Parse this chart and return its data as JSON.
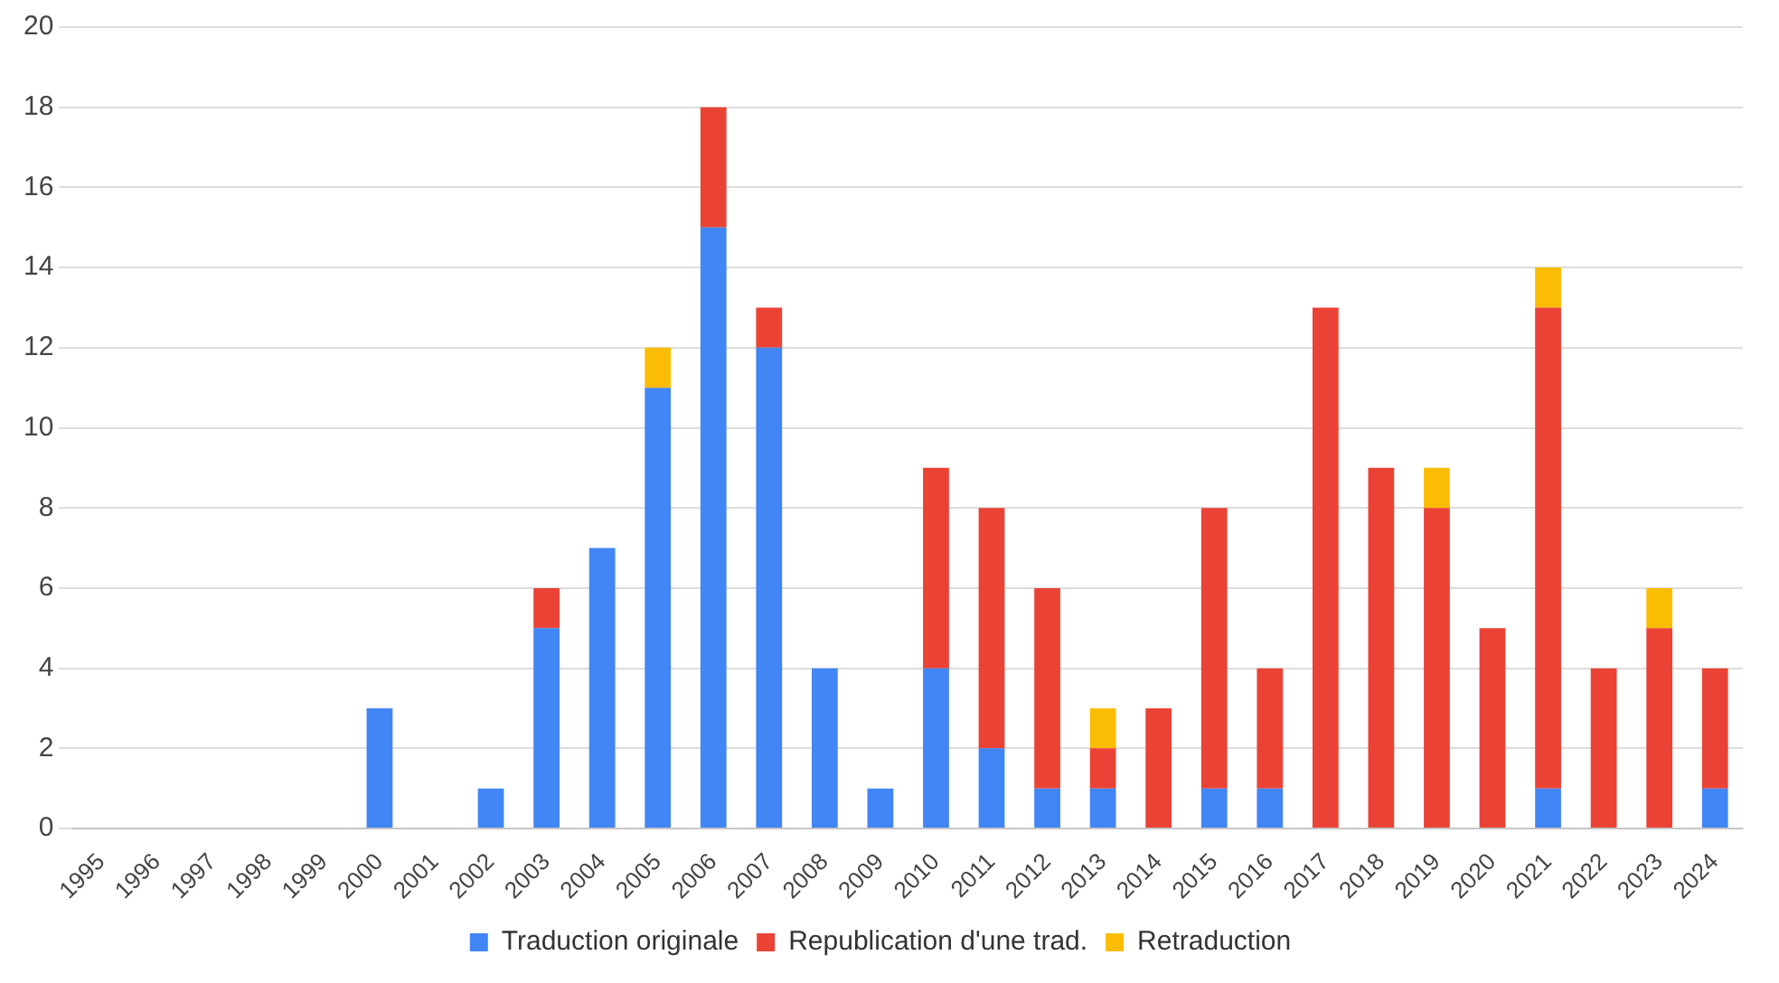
{
  "chart_data": {
    "type": "bar",
    "stacked": true,
    "categories": [
      "1995",
      "1996",
      "1997",
      "1998",
      "1999",
      "2000",
      "2001",
      "2002",
      "2003",
      "2004",
      "2005",
      "2006",
      "2007",
      "2008",
      "2009",
      "2010",
      "2011",
      "2012",
      "2013",
      "2014",
      "2015",
      "2016",
      "2017",
      "2018",
      "2019",
      "2020",
      "2021",
      "2022",
      "2023",
      "2024"
    ],
    "series": [
      {
        "name": "Traduction originale",
        "color": "#4285f4",
        "values": [
          0,
          0,
          0,
          0,
          0,
          3,
          0,
          1,
          5,
          7,
          11,
          15,
          12,
          4,
          1,
          4,
          2,
          1,
          1,
          0,
          1,
          1,
          0,
          0,
          0,
          0,
          1,
          0,
          0,
          1
        ]
      },
      {
        "name": "Republication d'une trad.",
        "color": "#ea4335",
        "values": [
          0,
          0,
          0,
          0,
          0,
          0,
          0,
          0,
          1,
          0,
          0,
          3,
          1,
          0,
          0,
          5,
          6,
          5,
          1,
          3,
          7,
          3,
          13,
          9,
          8,
          5,
          12,
          4,
          5,
          3
        ]
      },
      {
        "name": "Retraduction",
        "color": "#fbbc04",
        "values": [
          0,
          0,
          0,
          0,
          0,
          0,
          0,
          0,
          0,
          0,
          1,
          0,
          0,
          0,
          0,
          0,
          0,
          0,
          1,
          0,
          0,
          0,
          0,
          0,
          1,
          0,
          1,
          0,
          1,
          0
        ]
      }
    ],
    "ylim": [
      0,
      20
    ],
    "yticks": [
      0,
      2,
      4,
      6,
      8,
      10,
      12,
      14,
      16,
      18,
      20
    ],
    "grid": "y",
    "legend": "bottom"
  }
}
